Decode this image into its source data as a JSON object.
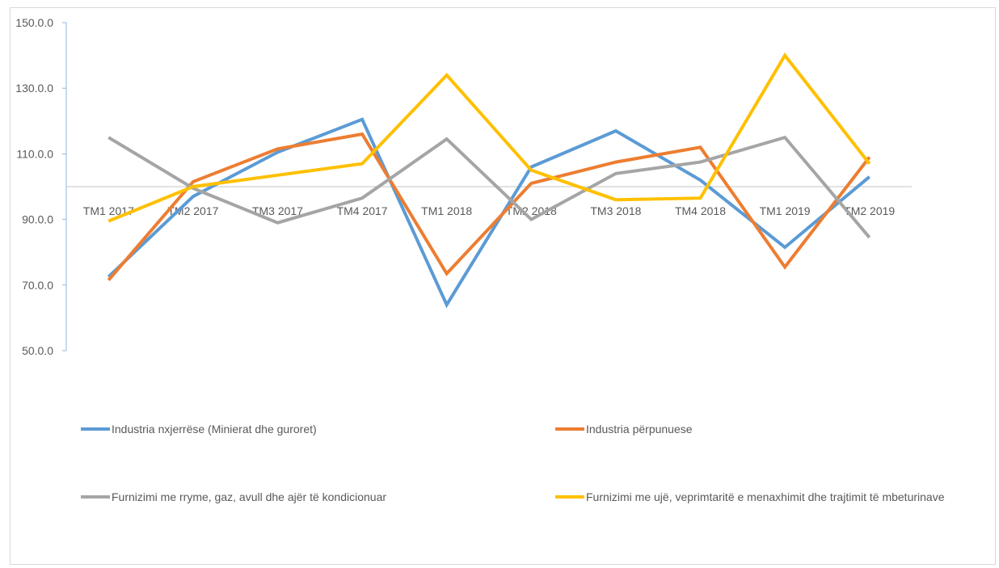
{
  "chart_data": {
    "type": "line",
    "title": "",
    "xlabel": "",
    "ylabel": "",
    "ylim": [
      50,
      150
    ],
    "yticks": [
      "50.0.0",
      "70.0.0",
      "90.0.0",
      "110.0.0",
      "130.0.0",
      "150.0.0"
    ],
    "ytick_values": [
      50,
      70,
      90,
      110,
      130,
      150
    ],
    "baseline": 100,
    "grid": false,
    "legend_position": "bottom",
    "categories": [
      "TM1  2017",
      "TM2 2017",
      "TM3  2017",
      "TM4  2017",
      "TM1 2018",
      "TM2 2018",
      "TM3 2018",
      "TM4 2018",
      "TM1 2019",
      "TM2 2019"
    ],
    "series": [
      {
        "name": "Industria nxjerrëse (Minierat dhe guroret)",
        "color": "#5b9bd5",
        "values": [
          72.5,
          97,
          110.5,
          120.5,
          64,
          106,
          117,
          102,
          81.5,
          103
        ]
      },
      {
        "name": "Industria përpunuese",
        "color": "#ed7d31",
        "values": [
          71.5,
          101.5,
          111.5,
          116,
          73.5,
          101,
          107.5,
          112,
          75.5,
          109
        ]
      },
      {
        "name": "Furnizimi me rryme, gaz, avull dhe ajër të kondicionuar",
        "color": "#a5a5a5",
        "values": [
          115,
          99.5,
          89,
          96.5,
          114.5,
          90,
          104,
          107.5,
          115,
          84.5
        ]
      },
      {
        "name": "Furnizimi me ujë, veprimtaritë e menaxhimit dhe trajtimit të mbeturinave",
        "color": "#ffc000",
        "values": [
          89.5,
          100,
          103.5,
          107,
          134,
          105,
          96,
          96.5,
          140,
          107
        ]
      }
    ]
  }
}
